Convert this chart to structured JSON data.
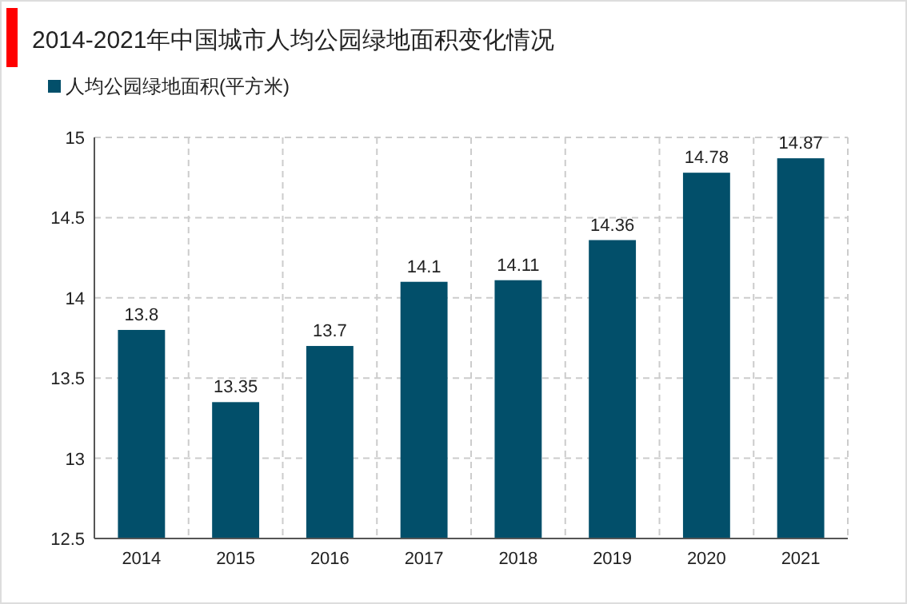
{
  "chart_data": {
    "type": "bar",
    "title": "2014-2021年中国城市人均公园绿地面积变化情况",
    "categories": [
      "2014",
      "2015",
      "2016",
      "2017",
      "2018",
      "2019",
      "2020",
      "2021"
    ],
    "series": [
      {
        "name": "人均公园绿地面积(平方米)",
        "color": "#024f6a",
        "values": [
          13.8,
          13.35,
          13.7,
          14.1,
          14.11,
          14.36,
          14.78,
          14.87
        ]
      }
    ],
    "ylim": [
      12.5,
      15
    ],
    "yticks": [
      12.5,
      13,
      13.5,
      14,
      14.5,
      15
    ],
    "grid": true,
    "legend": "top left",
    "data_labels": true
  }
}
